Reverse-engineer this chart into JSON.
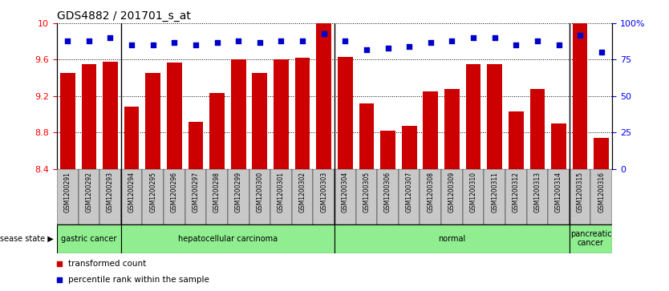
{
  "title": "GDS4882 / 201701_s_at",
  "samples": [
    "GSM1200291",
    "GSM1200292",
    "GSM1200293",
    "GSM1200294",
    "GSM1200295",
    "GSM1200296",
    "GSM1200297",
    "GSM1200298",
    "GSM1200299",
    "GSM1200300",
    "GSM1200301",
    "GSM1200302",
    "GSM1200303",
    "GSM1200304",
    "GSM1200305",
    "GSM1200306",
    "GSM1200307",
    "GSM1200308",
    "GSM1200309",
    "GSM1200310",
    "GSM1200311",
    "GSM1200312",
    "GSM1200313",
    "GSM1200314",
    "GSM1200315",
    "GSM1200316"
  ],
  "bar_values": [
    9.45,
    9.55,
    9.58,
    9.08,
    9.45,
    9.57,
    8.92,
    9.23,
    9.6,
    9.45,
    9.6,
    9.62,
    10.0,
    9.63,
    9.12,
    8.82,
    8.87,
    9.25,
    9.28,
    9.55,
    9.55,
    9.03,
    9.28,
    8.9,
    10.0,
    8.74
  ],
  "percentile_values": [
    88,
    88,
    90,
    85,
    85,
    87,
    85,
    87,
    88,
    87,
    88,
    88,
    93,
    88,
    82,
    83,
    84,
    87,
    88,
    90,
    90,
    85,
    88,
    85,
    92,
    80
  ],
  "ylim_left": [
    8.4,
    10.0
  ],
  "ylim_right": [
    0,
    100
  ],
  "bar_color": "#CC0000",
  "percentile_color": "#0000CC",
  "tick_bg_color": "#C8C8C8",
  "disease_groups": [
    {
      "label": "gastric cancer",
      "start": 0,
      "end": 3
    },
    {
      "label": "hepatocellular carcinoma",
      "start": 3,
      "end": 13
    },
    {
      "label": "normal",
      "start": 13,
      "end": 24
    },
    {
      "label": "pancreatic\ncancer",
      "start": 24,
      "end": 26
    }
  ],
  "disease_bg_color": "#90EE90",
  "disease_label": "disease state",
  "legend_bar_label": "transformed count",
  "legend_pct_label": "percentile rank within the sample"
}
